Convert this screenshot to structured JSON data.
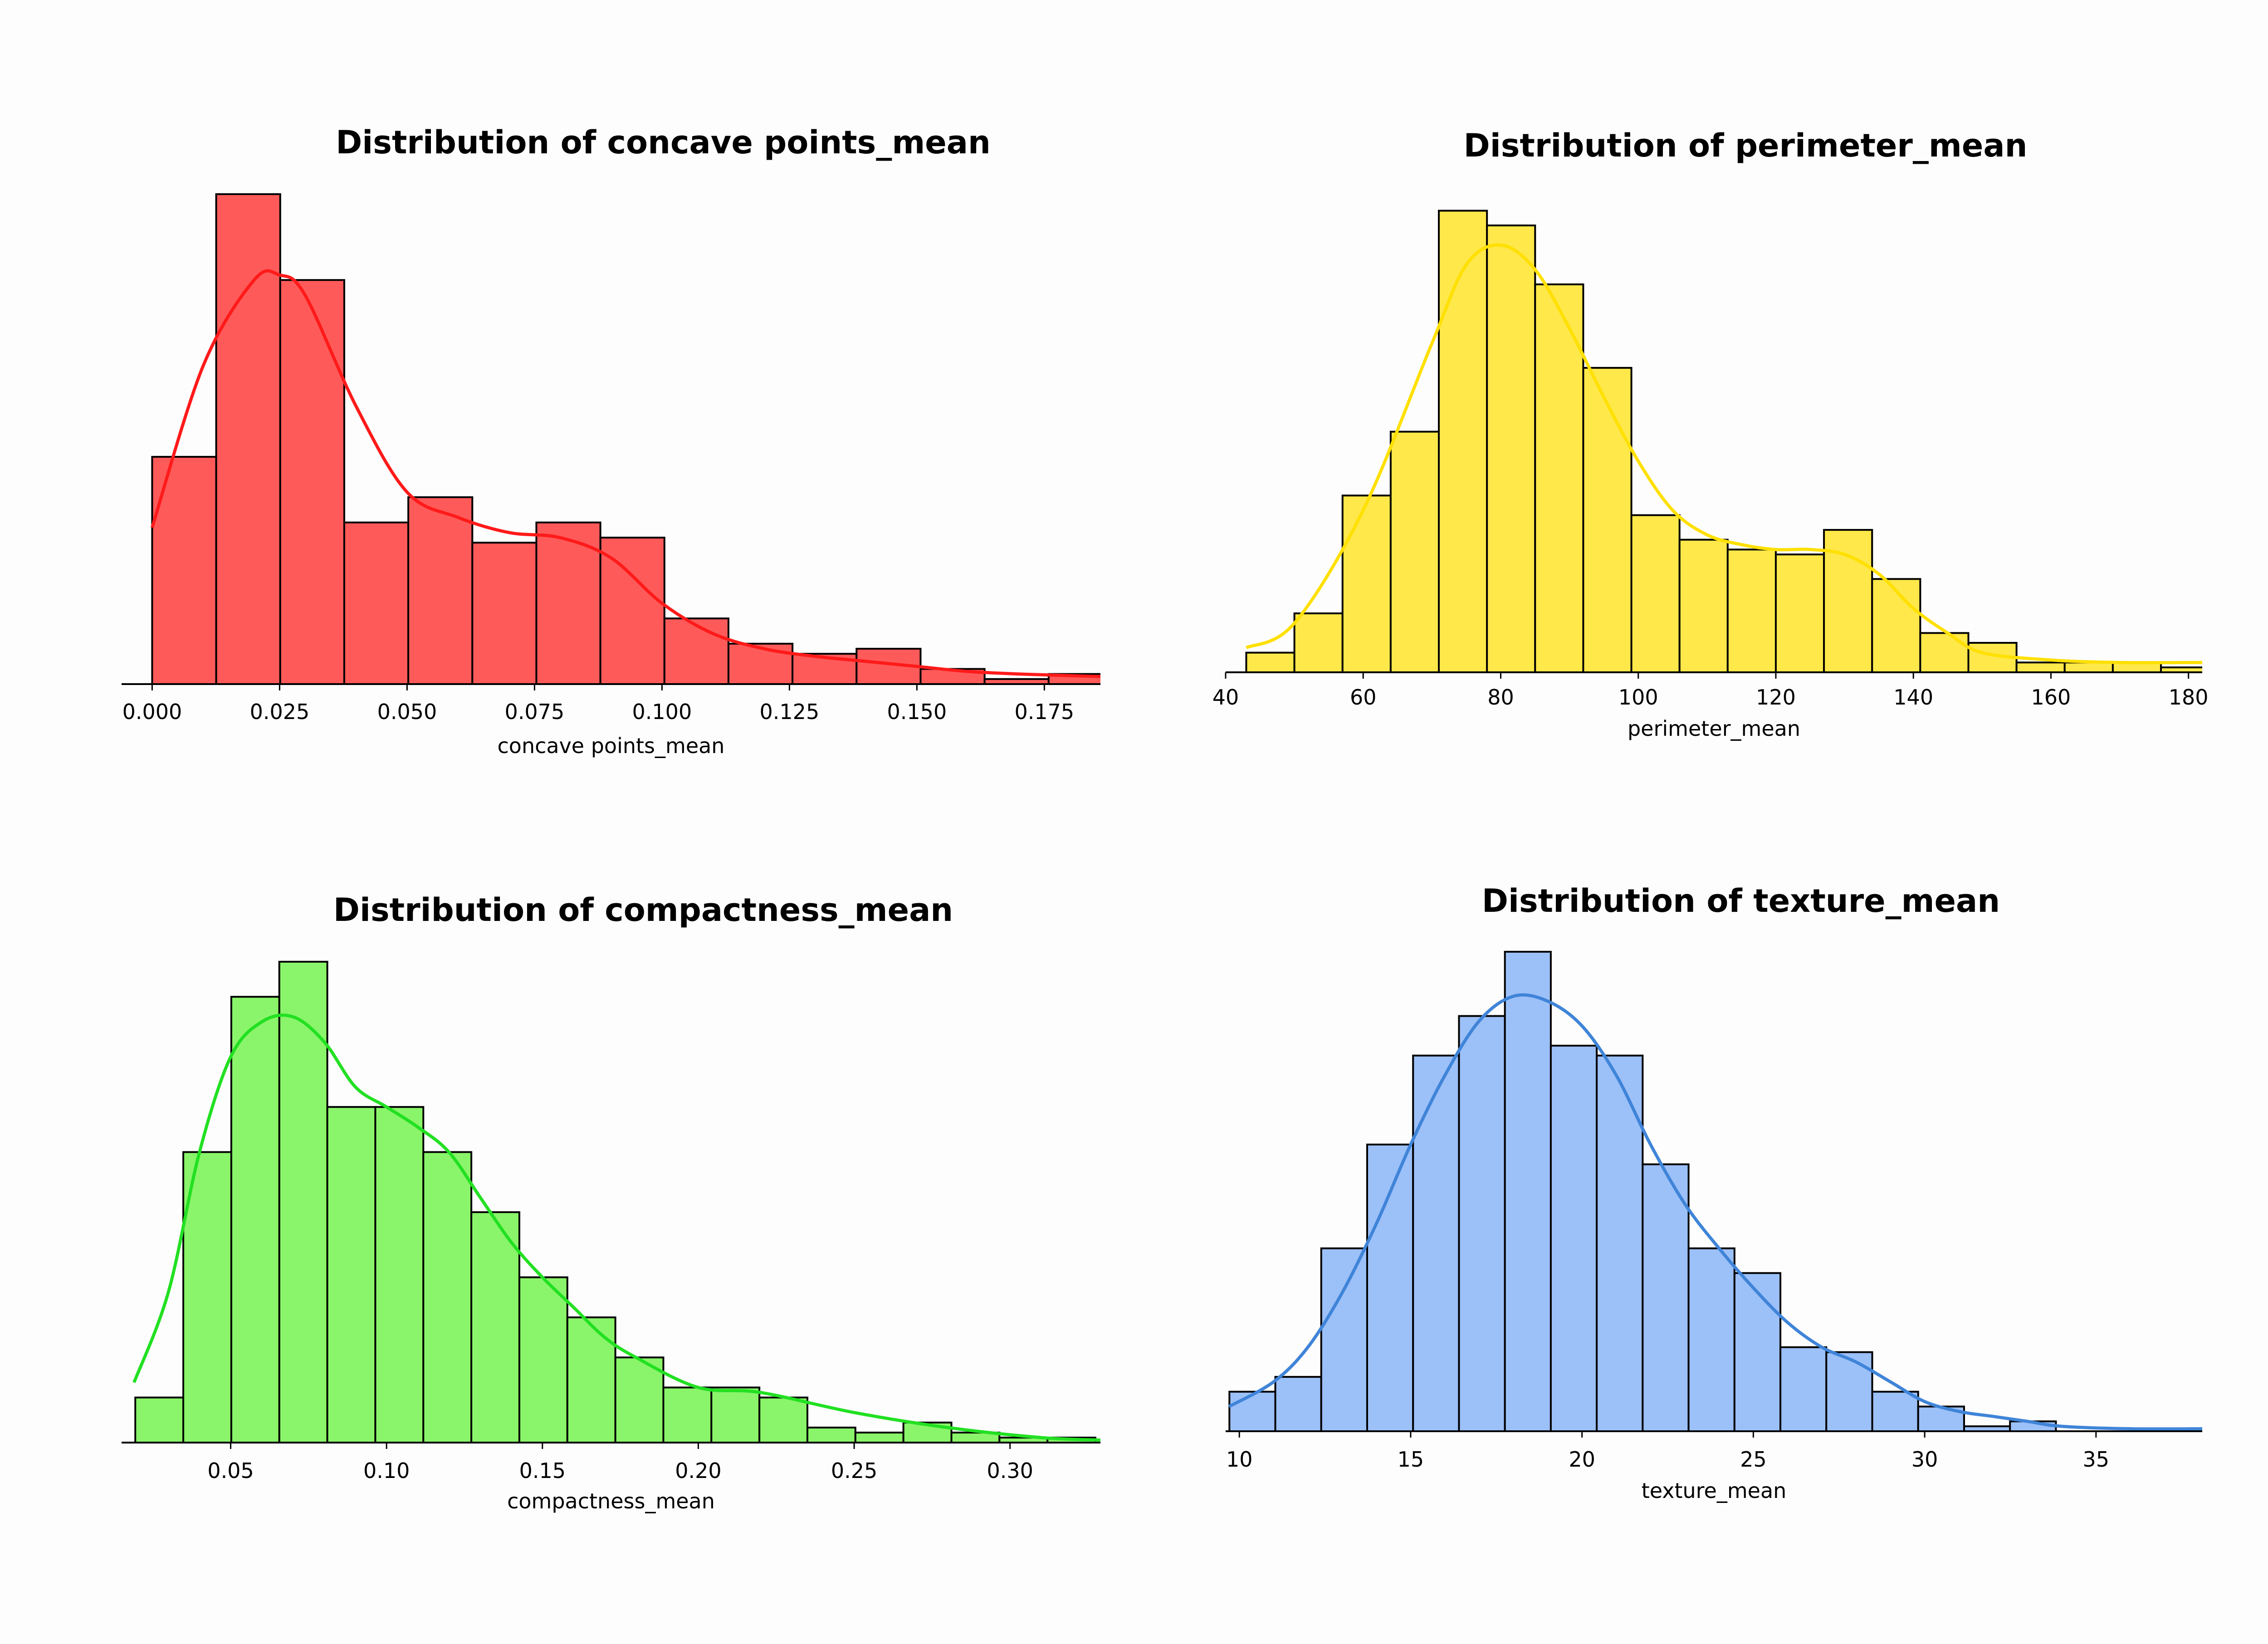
{
  "chart_data": [
    {
      "type": "bar",
      "title": "Distribution of concave points_mean",
      "xlabel": "concave points_mean",
      "ylabel": "",
      "color": "#ff5a5a",
      "kde_color": "#ff1a1a",
      "xlim": [
        -0.006,
        0.186
      ],
      "ylim": [
        0,
        97
      ],
      "xticks": [
        0.0,
        0.025,
        0.05,
        0.075,
        0.1,
        0.125,
        0.15,
        0.175
      ],
      "xtick_labels": [
        "0.000",
        "0.025",
        "0.050",
        "0.075",
        "0.100",
        "0.125",
        "0.150",
        "0.175"
      ],
      "bin_edges": [
        0.0,
        0.01256,
        0.02512,
        0.03768,
        0.05024,
        0.0628,
        0.07536,
        0.08792,
        0.10048,
        0.11304,
        0.1256,
        0.13816,
        0.15072,
        0.16328,
        0.17584,
        0.1884
      ],
      "values": [
        45,
        97,
        80,
        32,
        37,
        28,
        32,
        29,
        13,
        8,
        6,
        7,
        3,
        1,
        2
      ],
      "kde": {
        "x": [
          0.0,
          0.01,
          0.02,
          0.025,
          0.03,
          0.04,
          0.05,
          0.06,
          0.07,
          0.08,
          0.09,
          0.1,
          0.11,
          0.12,
          0.13,
          0.14,
          0.15,
          0.16,
          0.17,
          0.186
        ],
        "y": [
          31,
          63,
          80,
          81,
          77,
          55,
          38,
          33,
          30,
          29,
          25,
          16,
          10,
          7,
          5.5,
          4.5,
          3.5,
          2.5,
          2,
          1.5
        ]
      }
    },
    {
      "type": "bar",
      "title": "Distribution of perimeter_mean",
      "xlabel": "perimeter_mean",
      "ylabel": "",
      "color": "#ffe84a",
      "kde_color": "#ffe000",
      "xlim": [
        40,
        182
      ],
      "ylim": [
        0,
        97
      ],
      "xticks": [
        40,
        60,
        80,
        100,
        120,
        140,
        160,
        180
      ],
      "xtick_labels": [
        "40",
        "60",
        "80",
        "100",
        "120",
        "140",
        "160",
        "180"
      ],
      "bin_edges": [
        43,
        50,
        57,
        64,
        71,
        78,
        85,
        92,
        99,
        106,
        113,
        120,
        127,
        134,
        141,
        148,
        155,
        162,
        169,
        176,
        183
      ],
      "values": [
        4,
        12,
        36,
        49,
        94,
        91,
        79,
        62,
        32,
        27,
        25,
        24,
        29,
        19,
        8,
        6,
        2,
        2,
        2,
        1
      ],
      "kde": {
        "x": [
          43,
          50,
          60,
          70,
          75,
          80,
          85,
          90,
          95,
          100,
          105,
          110,
          115,
          120,
          125,
          130,
          135,
          140,
          145,
          150,
          160,
          170,
          182
        ],
        "y": [
          5,
          10,
          33,
          67,
          83,
          87,
          82,
          70,
          56,
          43,
          33,
          28,
          26,
          25,
          25,
          24,
          20,
          13,
          8,
          4,
          2.5,
          2,
          2
        ]
      }
    },
    {
      "type": "bar",
      "title": "Distribution of compactness_mean",
      "xlabel": "compactness_mean",
      "ylabel": "",
      "color": "#8af56a",
      "kde_color": "#22e022",
      "xlim": [
        0.015,
        0.329
      ],
      "ylim": [
        0,
        96
      ],
      "xticks": [
        0.05,
        0.1,
        0.15,
        0.2,
        0.25,
        0.3
      ],
      "xtick_labels": [
        "0.05",
        "0.10",
        "0.15",
        "0.20",
        "0.25",
        "0.30"
      ],
      "bin_edges": [
        0.0194,
        0.0348,
        0.0502,
        0.0656,
        0.081,
        0.0964,
        0.1118,
        0.1272,
        0.1426,
        0.158,
        0.1734,
        0.1888,
        0.2042,
        0.2196,
        0.235,
        0.2504,
        0.2658,
        0.2812,
        0.2966,
        0.312,
        0.3274
      ],
      "values": [
        9,
        58,
        89,
        96,
        67,
        67,
        58,
        46,
        33,
        25,
        17,
        11,
        11,
        9,
        3,
        2,
        4,
        2,
        1,
        1
      ],
      "kde": {
        "x": [
          0.019,
          0.03,
          0.04,
          0.05,
          0.06,
          0.07,
          0.08,
          0.09,
          0.1,
          0.11,
          0.12,
          0.13,
          0.14,
          0.15,
          0.16,
          0.17,
          0.18,
          0.2,
          0.22,
          0.25,
          0.28,
          0.31,
          0.329
        ],
        "y": [
          12,
          30,
          58,
          77,
          84,
          85,
          80,
          71,
          67,
          63,
          58,
          49,
          40,
          33,
          27,
          21,
          17,
          11,
          10,
          6,
          3,
          1,
          0.5
        ]
      }
    },
    {
      "type": "bar",
      "title": "Distribution of texture_mean",
      "xlabel": "texture_mean",
      "ylabel": "",
      "color": "#9cc0f8",
      "kde_color": "#3f84d8",
      "xlim": [
        9.6,
        38.1
      ],
      "ylim": [
        0,
        97
      ],
      "xticks": [
        10,
        15,
        20,
        25,
        30,
        35
      ],
      "xtick_labels": [
        "10",
        "15",
        "20",
        "25",
        "30",
        "35"
      ],
      "bin_edges": [
        9.71,
        11.05,
        12.39,
        13.73,
        15.07,
        16.41,
        17.75,
        19.09,
        20.43,
        21.77,
        23.11,
        24.45,
        25.79,
        27.13,
        28.47,
        29.81,
        31.15,
        32.49,
        33.83,
        35.17,
        36.51,
        37.85
      ],
      "values": [
        8,
        11,
        37,
        58,
        76,
        84,
        97,
        78,
        76,
        54,
        37,
        32,
        17,
        16,
        8,
        5,
        1,
        2,
        0,
        0,
        0
      ],
      "kde": {
        "x": [
          9.7,
          11,
          12,
          13,
          14,
          15,
          16,
          17,
          18,
          19,
          20,
          21,
          22,
          23,
          24,
          25,
          26,
          27,
          28,
          29,
          30,
          31,
          32,
          33,
          34,
          36,
          38.1
        ],
        "y": [
          5,
          10,
          17,
          28,
          42,
          58,
          72,
          83,
          88,
          87,
          82,
          72,
          58,
          46,
          37,
          29,
          22,
          17,
          14,
          10,
          6,
          4,
          3,
          2,
          1,
          0.5,
          0.5
        ]
      }
    }
  ]
}
